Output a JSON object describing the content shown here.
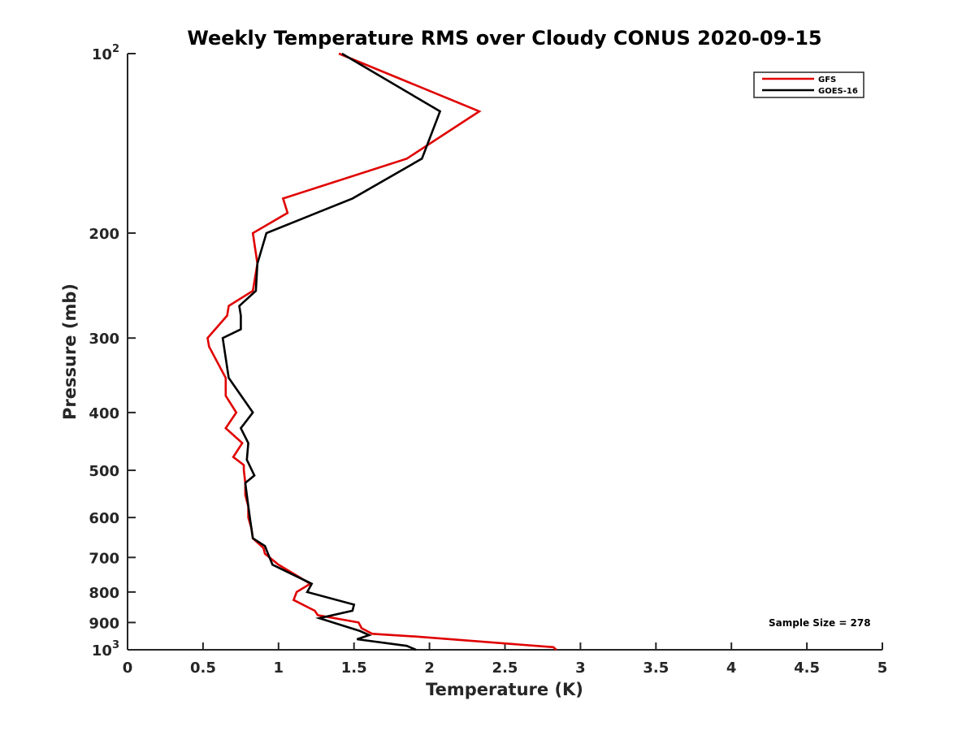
{
  "chart_data": {
    "type": "line",
    "title": "Weekly Temperature RMS over Cloudy CONUS 2020-09-15",
    "xlabel": "Temperature (K)",
    "ylabel": "Pressure (mb)",
    "xlim": [
      0,
      5
    ],
    "ylim": [
      1000,
      100
    ],
    "yscale": "log",
    "y_reversed": true,
    "grid": false,
    "legend_position": "top-right",
    "annotation": "Sample Size = 278",
    "x_ticks": [
      "0",
      "0.5",
      "1",
      "1.5",
      "2",
      "2.5",
      "3",
      "3.5",
      "4",
      "4.5",
      "5"
    ],
    "y_ticks": [
      {
        "value": 100,
        "base": "10",
        "exp": "2"
      },
      {
        "value": 200,
        "label": "200"
      },
      {
        "value": 300,
        "label": "300"
      },
      {
        "value": 400,
        "label": "400"
      },
      {
        "value": 500,
        "label": "500"
      },
      {
        "value": 600,
        "label": "600"
      },
      {
        "value": 700,
        "label": "700"
      },
      {
        "value": 800,
        "label": "800"
      },
      {
        "value": 900,
        "label": "900"
      },
      {
        "value": 1000,
        "base": "10",
        "exp": "3"
      }
    ],
    "series": [
      {
        "name": "GFS",
        "color": "#e00000",
        "points": [
          [
            1.4,
            100
          ],
          [
            2.33,
            125
          ],
          [
            1.85,
            150
          ],
          [
            1.03,
            175
          ],
          [
            1.06,
            185
          ],
          [
            0.83,
            200
          ],
          [
            0.86,
            225
          ],
          [
            0.83,
            250
          ],
          [
            0.67,
            265
          ],
          [
            0.66,
            275
          ],
          [
            0.53,
            300
          ],
          [
            0.54,
            310
          ],
          [
            0.65,
            350
          ],
          [
            0.65,
            375
          ],
          [
            0.72,
            400
          ],
          [
            0.65,
            425
          ],
          [
            0.76,
            450
          ],
          [
            0.7,
            475
          ],
          [
            0.77,
            490
          ],
          [
            0.77,
            500
          ],
          [
            0.78,
            525
          ],
          [
            0.78,
            550
          ],
          [
            0.8,
            575
          ],
          [
            0.8,
            600
          ],
          [
            0.82,
            625
          ],
          [
            0.83,
            650
          ],
          [
            0.9,
            675
          ],
          [
            0.91,
            690
          ],
          [
            1.0,
            720
          ],
          [
            1.21,
            775
          ],
          [
            1.12,
            800
          ],
          [
            1.1,
            825
          ],
          [
            1.24,
            860
          ],
          [
            1.26,
            875
          ],
          [
            1.53,
            900
          ],
          [
            1.55,
            920
          ],
          [
            1.62,
            940
          ],
          [
            1.9,
            950
          ],
          [
            2.82,
            990
          ],
          [
            2.84,
            1000
          ]
        ]
      },
      {
        "name": "GOES-16",
        "color": "#000000",
        "points": [
          [
            1.42,
            100
          ],
          [
            2.07,
            125
          ],
          [
            1.95,
            150
          ],
          [
            1.49,
            175
          ],
          [
            0.92,
            200
          ],
          [
            0.86,
            225
          ],
          [
            0.85,
            250
          ],
          [
            0.74,
            265
          ],
          [
            0.75,
            275
          ],
          [
            0.75,
            290
          ],
          [
            0.63,
            300
          ],
          [
            0.67,
            350
          ],
          [
            0.83,
            400
          ],
          [
            0.75,
            425
          ],
          [
            0.8,
            450
          ],
          [
            0.79,
            480
          ],
          [
            0.84,
            510
          ],
          [
            0.78,
            525
          ],
          [
            0.79,
            550
          ],
          [
            0.81,
            600
          ],
          [
            0.83,
            650
          ],
          [
            0.91,
            670
          ],
          [
            0.93,
            690
          ],
          [
            0.96,
            720
          ],
          [
            1.22,
            775
          ],
          [
            1.19,
            800
          ],
          [
            1.5,
            840
          ],
          [
            1.49,
            860
          ],
          [
            1.27,
            885
          ],
          [
            1.42,
            910
          ],
          [
            1.54,
            930
          ],
          [
            1.6,
            945
          ],
          [
            1.52,
            960
          ],
          [
            1.85,
            985
          ],
          [
            1.91,
            1000
          ]
        ]
      }
    ]
  }
}
